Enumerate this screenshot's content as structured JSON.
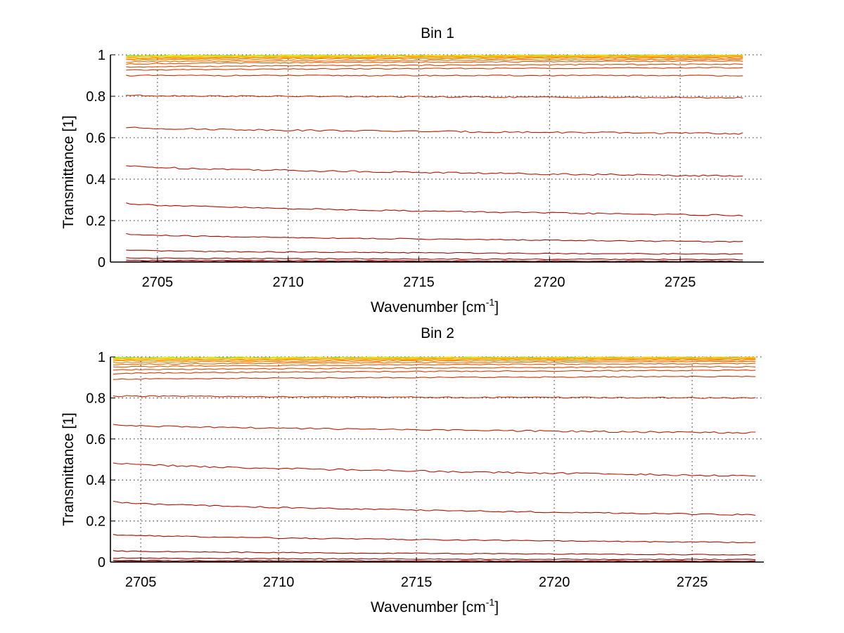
{
  "chart_data": [
    {
      "type": "line",
      "title": "Bin 1",
      "xlabel": "Wavenumber [cm",
      "xlabel_sup": "-1",
      "xlabel_end": "]",
      "ylabel": "Transmittance [1]",
      "xlim": [
        2703.2,
        2728.2
      ],
      "ylim": [
        0,
        1
      ],
      "x_range": [
        2703.8,
        2727.4
      ],
      "xticks": [
        2705,
        2710,
        2715,
        2720,
        2725
      ],
      "yticks": [
        0,
        0.2,
        0.4,
        0.6,
        0.8,
        1
      ],
      "ytick_labels": [
        "0",
        "0.2",
        "0.4",
        "0.6",
        "0.8",
        "1"
      ],
      "grid": true,
      "series": [
        {
          "start": 0.997,
          "end": 0.999,
          "color": "#c6ff3a"
        },
        {
          "start": 0.995,
          "end": 0.998,
          "color": "#7fd13b"
        },
        {
          "start": 0.993,
          "end": 0.997,
          "color": "#ffe100"
        },
        {
          "start": 0.99,
          "end": 0.995,
          "color": "#ffc400"
        },
        {
          "start": 0.985,
          "end": 0.993,
          "color": "#ffa500"
        },
        {
          "start": 0.98,
          "end": 0.99,
          "color": "#ff9100"
        },
        {
          "start": 0.975,
          "end": 0.985,
          "color": "#ff7f00"
        },
        {
          "start": 0.965,
          "end": 0.978,
          "color": "#f56a00"
        },
        {
          "start": 0.955,
          "end": 0.97,
          "color": "#ec5a00"
        },
        {
          "start": 0.94,
          "end": 0.955,
          "color": "#e04a00"
        },
        {
          "start": 0.925,
          "end": 0.938,
          "color": "#d83c00"
        },
        {
          "start": 0.9,
          "end": 0.9,
          "color": "#cf3000"
        },
        {
          "start": 0.805,
          "end": 0.793,
          "color": "#c72500"
        },
        {
          "start": 0.65,
          "end": 0.62,
          "color": "#bf1c00"
        },
        {
          "start": 0.465,
          "end": 0.415,
          "color": "#b81400"
        },
        {
          "start": 0.285,
          "end": 0.225,
          "color": "#b00e00"
        },
        {
          "start": 0.135,
          "end": 0.098,
          "color": "#a80a00"
        },
        {
          "start": 0.057,
          "end": 0.038,
          "color": "#a00700"
        },
        {
          "start": 0.02,
          "end": 0.012,
          "color": "#960400"
        },
        {
          "start": 0.008,
          "end": 0.004,
          "color": "#8c0200"
        },
        {
          "start": 0.003,
          "end": 0.001,
          "color": "#800000"
        }
      ]
    },
    {
      "type": "line",
      "title": "Bin 2",
      "xlabel": "Wavenumber [cm",
      "xlabel_sup": "-1",
      "xlabel_end": "]",
      "ylabel": "Transmittance [1]",
      "xlim": [
        2703.9,
        2727.6
      ],
      "ylim": [
        0,
        1
      ],
      "x_range": [
        2704.0,
        2727.3
      ],
      "xticks": [
        2705,
        2710,
        2715,
        2720,
        2725
      ],
      "yticks": [
        0,
        0.2,
        0.4,
        0.6,
        0.8,
        1
      ],
      "ytick_labels": [
        "0",
        "0.2",
        "0.4",
        "0.6",
        "0.8",
        "1"
      ],
      "grid": true,
      "series": [
        {
          "start": 0.997,
          "end": 0.999,
          "color": "#c6ff3a"
        },
        {
          "start": 0.995,
          "end": 0.998,
          "color": "#7fd13b"
        },
        {
          "start": 0.993,
          "end": 0.997,
          "color": "#ffe100"
        },
        {
          "start": 0.99,
          "end": 0.996,
          "color": "#ffc400"
        },
        {
          "start": 0.985,
          "end": 0.993,
          "color": "#ffa500"
        },
        {
          "start": 0.98,
          "end": 0.99,
          "color": "#ff9100"
        },
        {
          "start": 0.972,
          "end": 0.985,
          "color": "#ff7f00"
        },
        {
          "start": 0.962,
          "end": 0.978,
          "color": "#f56a00"
        },
        {
          "start": 0.95,
          "end": 0.968,
          "color": "#ec5a00"
        },
        {
          "start": 0.935,
          "end": 0.952,
          "color": "#e04a00"
        },
        {
          "start": 0.918,
          "end": 0.935,
          "color": "#d83c00"
        },
        {
          "start": 0.89,
          "end": 0.905,
          "color": "#cf3000"
        },
        {
          "start": 0.81,
          "end": 0.8,
          "color": "#c72500"
        },
        {
          "start": 0.67,
          "end": 0.63,
          "color": "#bf1c00"
        },
        {
          "start": 0.485,
          "end": 0.42,
          "color": "#b81400"
        },
        {
          "start": 0.295,
          "end": 0.23,
          "color": "#b00e00"
        },
        {
          "start": 0.135,
          "end": 0.095,
          "color": "#a80a00"
        },
        {
          "start": 0.055,
          "end": 0.035,
          "color": "#a00700"
        },
        {
          "start": 0.02,
          "end": 0.012,
          "color": "#960400"
        },
        {
          "start": 0.008,
          "end": 0.004,
          "color": "#8c0200"
        },
        {
          "start": 0.003,
          "end": 0.001,
          "color": "#800000"
        }
      ]
    }
  ]
}
